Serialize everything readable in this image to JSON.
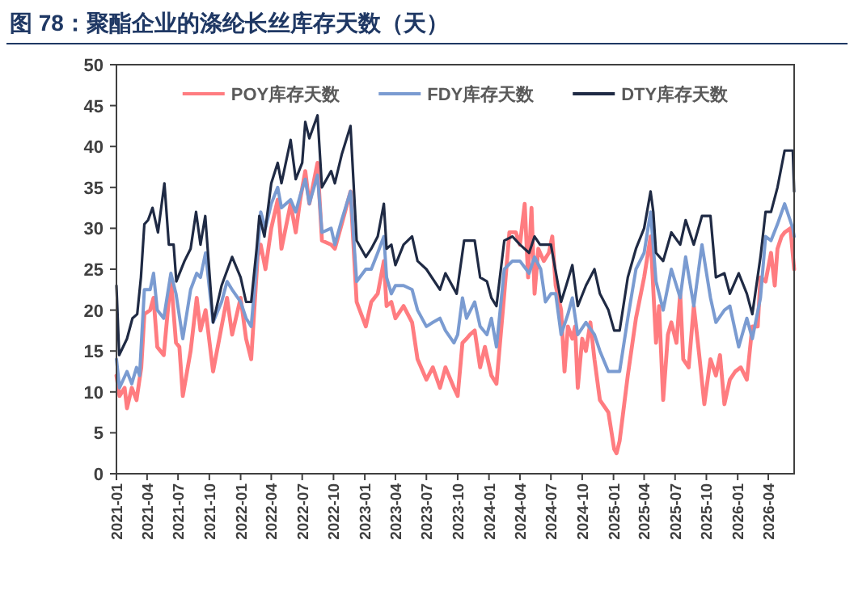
{
  "chart_data": {
    "type": "line",
    "title": "图 78：聚酯企业的涤纶长丝库存天数（天）",
    "legend": "top",
    "xlim": [
      "2021-01-01",
      "2026-06-16"
    ],
    "ylim": [
      0,
      50
    ],
    "yticks": [
      0,
      5,
      10,
      15,
      20,
      25,
      30,
      35,
      40,
      45,
      50
    ],
    "xticks": [
      "2021-01",
      "2021-04",
      "2021-07",
      "2021-10",
      "2022-01",
      "2022-04",
      "2022-07",
      "2022-10",
      "2023-01",
      "2023-04",
      "2023-07",
      "2023-10",
      "2024-01",
      "2024-04",
      "2024-07",
      "2024-10",
      "2025-01",
      "2025-04",
      "2025-07",
      "2025-10",
      "2026-01",
      "2026-04"
    ],
    "series": [
      {
        "name": "POY库存天数",
        "color": "#ff7c80",
        "x": [
          "2021-01-01",
          "2021-01-10",
          "2021-01-25",
          "2021-02-01",
          "2021-02-15",
          "2021-03-01",
          "2021-03-15",
          "2021-03-24",
          "2021-04-10",
          "2021-04-20",
          "2021-05-01",
          "2021-05-20",
          "2021-06-10",
          "2021-06-25",
          "2021-07-05",
          "2021-07-15",
          "2021-08-07",
          "2021-08-25",
          "2021-09-05",
          "2021-09-20",
          "2021-10-12",
          "2021-11-06",
          "2021-11-22",
          "2021-12-07",
          "2022-01-01",
          "2022-01-17",
          "2022-02-01",
          "2022-02-20",
          "2022-03-01",
          "2022-03-15",
          "2022-04-01",
          "2022-04-20",
          "2022-05-01",
          "2022-05-28",
          "2022-06-12",
          "2022-06-25",
          "2022-07-10",
          "2022-07-22",
          "2022-08-15",
          "2022-08-28",
          "2022-09-24",
          "2022-10-05",
          "2022-10-25",
          "2022-11-20",
          "2022-12-08",
          "2023-01-04",
          "2023-01-20",
          "2023-02-08",
          "2023-02-26",
          "2023-03-06",
          "2023-03-20",
          "2023-04-01",
          "2023-04-25",
          "2023-05-20",
          "2023-06-05",
          "2023-07-01",
          "2023-07-20",
          "2023-08-10",
          "2023-08-26",
          "2023-09-20",
          "2023-10-01",
          "2023-10-15",
          "2023-10-27",
          "2023-11-06",
          "2023-11-20",
          "2023-12-06",
          "2023-12-20",
          "2024-01-08",
          "2024-01-23",
          "2024-02-15",
          "2024-03-01",
          "2024-03-20",
          "2024-04-01",
          "2024-04-15",
          "2024-04-25",
          "2024-05-05",
          "2024-05-14",
          "2024-05-25",
          "2024-06-10",
          "2024-06-25",
          "2024-07-05",
          "2024-07-15",
          "2024-07-31",
          "2024-08-10",
          "2024-08-20",
          "2024-09-02",
          "2024-09-10",
          "2024-09-18",
          "2024-10-01",
          "2024-10-12",
          "2024-10-25",
          "2024-11-06",
          "2024-11-22",
          "2024-12-17",
          "2025-01-03",
          "2025-01-10",
          "2025-01-19",
          "2025-02-12",
          "2025-03-08",
          "2025-04-01",
          "2025-04-20",
          "2025-05-06",
          "2025-05-15",
          "2025-05-27",
          "2025-06-10",
          "2025-06-20",
          "2025-07-05",
          "2025-07-16",
          "2025-07-25",
          "2025-08-10",
          "2025-08-25",
          "2025-09-10",
          "2025-09-25",
          "2025-10-13",
          "2025-10-29",
          "2025-11-10",
          "2025-11-23",
          "2025-12-09",
          "2025-12-25",
          "2026-01-10",
          "2026-01-28",
          "2026-02-13",
          "2026-03-01",
          "2026-03-09",
          "2026-03-24",
          "2026-04-09",
          "2026-04-20",
          "2026-04-28",
          "2026-05-10",
          "2026-05-19",
          "2026-06-05",
          "2026-06-16"
        ],
        "values": [
          12,
          9.5,
          10.5,
          8,
          10.5,
          9,
          13,
          19.5,
          20,
          21.5,
          15.5,
          14.5,
          24,
          16,
          15.5,
          9.5,
          15,
          21.5,
          17.5,
          20,
          12.5,
          18,
          21.5,
          17,
          21.5,
          16.5,
          14,
          26.5,
          28,
          25,
          30,
          33.5,
          27.5,
          33,
          29.5,
          33.5,
          37,
          33,
          38,
          28.5,
          28,
          27.5,
          30.5,
          34.5,
          21,
          18,
          21,
          22,
          26,
          20.5,
          21,
          19,
          20.5,
          18.5,
          14,
          11.5,
          13,
          10.5,
          13,
          10.5,
          9.5,
          16,
          16.5,
          17,
          17.5,
          13,
          15.5,
          12,
          11,
          22,
          29.5,
          29.5,
          28,
          33,
          24,
          32.5,
          22,
          27.5,
          26,
          27,
          29,
          23,
          20,
          12.5,
          18,
          16.5,
          18,
          10.5,
          16.5,
          15,
          18.5,
          14,
          9,
          7.5,
          3,
          2.5,
          4,
          12,
          19,
          24,
          29,
          16,
          20.5,
          9,
          17,
          18.5,
          16,
          22,
          14,
          13,
          20.5,
          14.5,
          8.5,
          14,
          12,
          14.5,
          8.5,
          11.5,
          12.5,
          13,
          11.5,
          18,
          18,
          24,
          23.5,
          27,
          23,
          27.5,
          29,
          29.5,
          30,
          25
        ]
      },
      {
        "name": "FDY库存天数",
        "color": "#7a9bd1",
        "x": [
          "2021-01-01",
          "2021-01-10",
          "2021-02-01",
          "2021-02-15",
          "2021-03-01",
          "2021-03-10",
          "2021-03-24",
          "2021-04-10",
          "2021-04-20",
          "2021-05-01",
          "2021-05-20",
          "2021-06-10",
          "2021-06-25",
          "2021-07-15",
          "2021-08-07",
          "2021-08-25",
          "2021-09-05",
          "2021-09-20",
          "2021-10-12",
          "2021-11-06",
          "2021-11-22",
          "2021-12-07",
          "2022-01-01",
          "2022-01-17",
          "2022-02-01",
          "2022-02-20",
          "2022-03-01",
          "2022-03-15",
          "2022-04-01",
          "2022-04-20",
          "2022-05-01",
          "2022-05-28",
          "2022-06-12",
          "2022-06-25",
          "2022-07-10",
          "2022-07-22",
          "2022-08-15",
          "2022-08-28",
          "2022-09-24",
          "2022-10-05",
          "2022-10-25",
          "2022-11-20",
          "2022-12-08",
          "2023-01-04",
          "2023-01-20",
          "2023-02-08",
          "2023-02-26",
          "2023-03-06",
          "2023-03-20",
          "2023-04-01",
          "2023-04-25",
          "2023-05-20",
          "2023-06-05",
          "2023-07-01",
          "2023-07-20",
          "2023-08-10",
          "2023-08-26",
          "2023-09-20",
          "2023-10-01",
          "2023-10-15",
          "2023-10-27",
          "2023-11-20",
          "2023-12-06",
          "2023-12-26",
          "2024-01-08",
          "2024-01-23",
          "2024-02-15",
          "2024-03-10",
          "2024-04-01",
          "2024-04-28",
          "2024-05-14",
          "2024-06-01",
          "2024-06-15",
          "2024-07-01",
          "2024-07-15",
          "2024-07-31",
          "2024-08-20",
          "2024-09-02",
          "2024-09-18",
          "2024-10-12",
          "2024-11-06",
          "2024-11-22",
          "2024-12-17",
          "2025-01-03",
          "2025-01-19",
          "2025-02-12",
          "2025-03-08",
          "2025-04-01",
          "2025-04-20",
          "2025-05-06",
          "2025-05-27",
          "2025-06-20",
          "2025-07-16",
          "2025-08-01",
          "2025-08-25",
          "2025-09-18",
          "2025-10-13",
          "2025-10-29",
          "2025-11-23",
          "2025-12-09",
          "2026-01-04",
          "2026-01-28",
          "2026-02-13",
          "2026-03-09",
          "2026-03-24",
          "2026-04-09",
          "2026-04-28",
          "2026-05-19",
          "2026-06-12",
          "2026-06-16"
        ],
        "values": [
          14,
          10.5,
          12.5,
          11,
          13,
          12,
          22.5,
          22.5,
          24.5,
          20,
          19,
          24.5,
          22,
          16.5,
          22.5,
          24.5,
          24,
          27,
          18.5,
          21,
          23.5,
          22.5,
          21,
          19,
          18,
          27,
          32,
          30,
          33,
          35,
          32.5,
          33.5,
          32,
          34,
          36,
          33,
          36.5,
          29.5,
          30,
          28,
          31,
          34.5,
          23.5,
          25,
          25,
          27,
          29,
          24,
          22,
          23,
          23,
          22.5,
          20,
          18,
          18.5,
          19,
          17.5,
          16,
          17,
          21.5,
          19,
          21,
          18,
          17,
          19,
          15.5,
          25,
          26,
          26,
          24.5,
          26.5,
          25,
          21,
          22,
          22,
          17,
          19.5,
          21.5,
          17,
          18.5,
          17,
          15,
          12.5,
          12.5,
          12.5,
          19,
          25,
          27,
          32,
          23.5,
          20,
          25,
          21.5,
          26.5,
          20.5,
          28,
          21.5,
          18.5,
          20,
          20.5,
          15.5,
          19,
          16.5,
          21.5,
          29,
          28.5,
          30.5,
          33,
          30,
          29
        ]
      },
      {
        "name": "DTY库存天数",
        "color": "#1f2a44",
        "x": [
          "2021-01-01",
          "2021-01-09",
          "2021-02-01",
          "2021-02-17",
          "2021-03-03",
          "2021-03-14",
          "2021-03-24",
          "2021-04-04",
          "2021-04-17",
          "2021-05-03",
          "2021-05-22",
          "2021-06-04",
          "2021-06-18",
          "2021-06-26",
          "2021-07-20",
          "2021-08-07",
          "2021-08-23",
          "2021-09-05",
          "2021-09-19",
          "2021-10-12",
          "2021-11-06",
          "2021-12-07",
          "2022-01-01",
          "2022-01-17",
          "2022-02-01",
          "2022-02-17",
          "2022-02-25",
          "2022-03-12",
          "2022-04-01",
          "2022-04-20",
          "2022-05-01",
          "2022-05-28",
          "2022-06-12",
          "2022-07-01",
          "2022-07-10",
          "2022-07-22",
          "2022-08-15",
          "2022-08-28",
          "2022-09-24",
          "2022-10-05",
          "2022-10-25",
          "2022-11-20",
          "2022-12-08",
          "2023-01-04",
          "2023-01-20",
          "2023-02-08",
          "2023-02-26",
          "2023-03-06",
          "2023-03-20",
          "2023-04-01",
          "2023-04-25",
          "2023-05-20",
          "2023-06-05",
          "2023-07-01",
          "2023-08-10",
          "2023-08-26",
          "2023-09-28",
          "2023-10-20",
          "2023-11-20",
          "2023-12-06",
          "2023-12-26",
          "2024-01-08",
          "2024-01-23",
          "2024-02-15",
          "2024-03-10",
          "2024-04-01",
          "2024-04-28",
          "2024-05-14",
          "2024-05-30",
          "2024-07-01",
          "2024-07-31",
          "2024-08-15",
          "2024-09-02",
          "2024-09-18",
          "2024-10-12",
          "2024-11-06",
          "2024-11-22",
          "2024-12-17",
          "2025-01-03",
          "2025-01-19",
          "2025-02-12",
          "2025-03-08",
          "2025-04-01",
          "2025-04-20",
          "2025-04-28",
          "2025-05-06",
          "2025-05-27",
          "2025-06-20",
          "2025-07-16",
          "2025-08-01",
          "2025-08-25",
          "2025-09-18",
          "2025-10-13",
          "2025-10-29",
          "2025-11-23",
          "2025-12-09",
          "2026-01-04",
          "2026-01-28",
          "2026-02-13",
          "2026-03-09",
          "2026-03-24",
          "2026-04-09",
          "2026-04-28",
          "2026-05-19",
          "2026-06-12",
          "2026-06-16"
        ],
        "values": [
          23,
          14.5,
          16.5,
          19,
          19.5,
          24,
          30.5,
          31,
          32.5,
          29.5,
          35.5,
          28,
          28,
          23.5,
          26,
          27.5,
          32,
          28,
          31.5,
          18.5,
          23,
          26.5,
          24,
          21,
          21,
          27.5,
          31.5,
          29,
          35.5,
          38,
          35.5,
          40.8,
          36,
          38,
          43,
          41,
          43.8,
          35,
          37,
          35.5,
          39,
          42.5,
          28.5,
          26.5,
          27.5,
          29,
          33,
          27.5,
          28,
          25.5,
          28,
          29,
          26,
          25,
          22.5,
          24.5,
          22,
          28.5,
          28.5,
          24,
          23.5,
          21.5,
          20.5,
          28.5,
          29,
          28,
          27,
          29,
          28,
          28,
          21,
          23,
          25.5,
          20.5,
          23,
          25,
          22,
          20,
          17.5,
          17.5,
          24,
          27.5,
          30,
          34.5,
          32,
          27,
          26,
          29.5,
          28,
          31,
          28,
          31.5,
          31.5,
          24,
          24.5,
          22,
          24.5,
          22,
          19.5,
          26.5,
          32,
          32,
          35,
          39.5,
          39.5,
          34.5
        ]
      }
    ]
  }
}
